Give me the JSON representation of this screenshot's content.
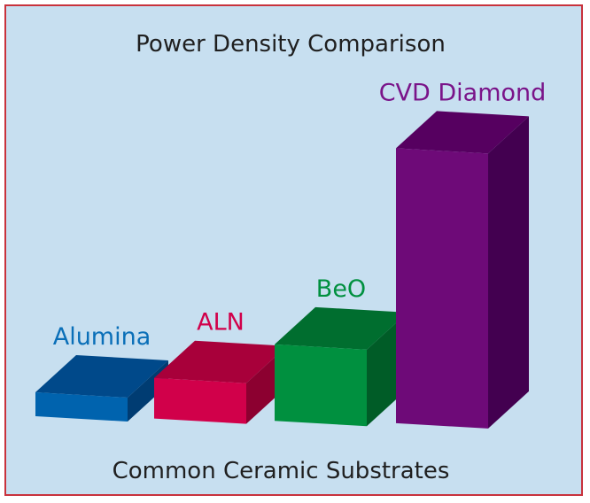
{
  "chart_data": {
    "type": "bar",
    "title": "Power Density Comparison",
    "xlabel": "Common Ceramic Substrates",
    "ylabel": "",
    "categories": [
      "Alumina",
      "ALN",
      "BeO",
      "CVD Diamond"
    ],
    "values": [
      1,
      1.7,
      3.2,
      11.5
    ],
    "ylim": [
      0,
      12
    ],
    "three_d": true,
    "grid": false,
    "legend": "none",
    "colors": {
      "background": "#c7dff0",
      "frame": "#c8323c",
      "bars": [
        {
          "front": "#0063ae",
          "top": "#00498a",
          "side": "#003c72",
          "label": "#0a6fb8"
        },
        {
          "front": "#d1004a",
          "top": "#a8003a",
          "side": "#8c0030",
          "label": "#d1004a"
        },
        {
          "front": "#00903f",
          "top": "#006e2f",
          "side": "#005c27",
          "label": "#00903f"
        },
        {
          "front": "#6e0a78",
          "top": "#560060",
          "side": "#430050",
          "label": "#7a1489"
        }
      ]
    }
  }
}
